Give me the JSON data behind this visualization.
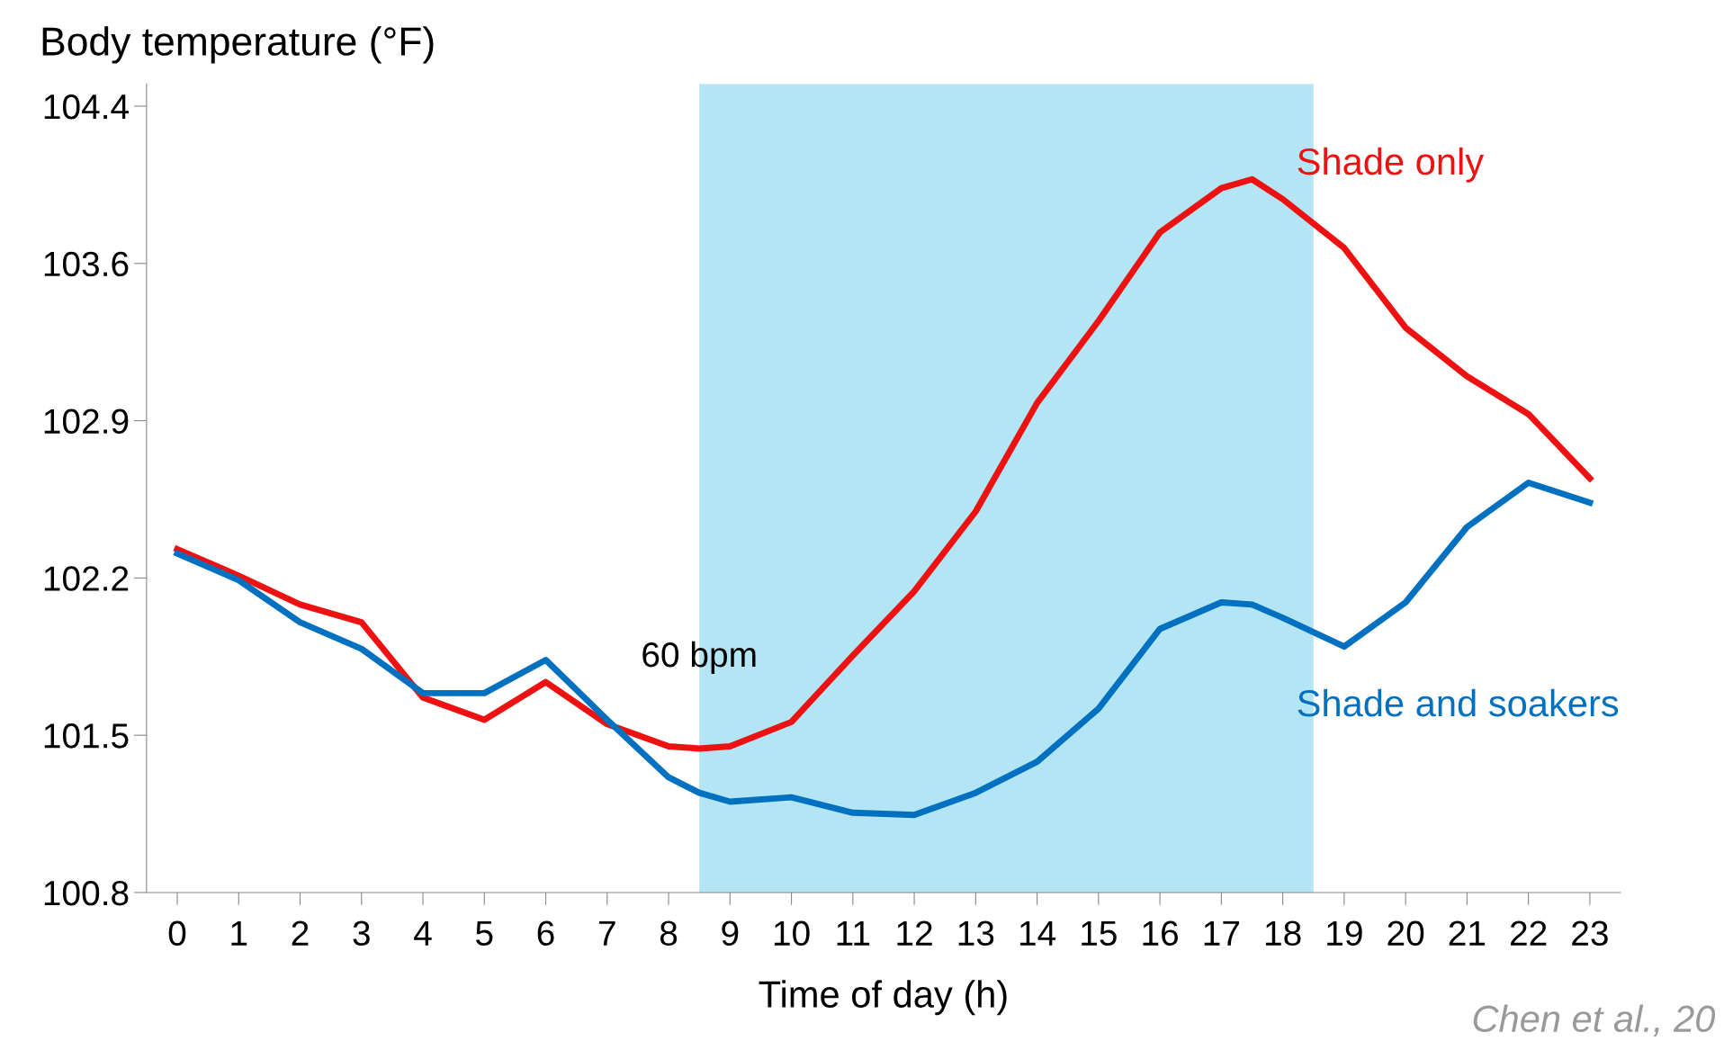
{
  "chart_data": {
    "type": "line",
    "ylabel": "Body temperature (°F)",
    "xlabel": "Time of day (h)",
    "x": [
      0,
      1,
      2,
      3,
      4,
      5,
      6,
      7,
      8,
      8.5,
      9,
      10,
      11,
      12,
      13,
      14,
      15,
      16,
      17,
      17.5,
      18,
      19,
      20,
      21,
      22,
      23
    ],
    "series": [
      {
        "name": "Shade only",
        "color": "#ee1111",
        "values": [
          102.35,
          102.23,
          102.1,
          102.02,
          101.68,
          101.58,
          101.75,
          101.56,
          101.46,
          101.45,
          101.46,
          101.57,
          101.87,
          102.16,
          102.52,
          103.01,
          103.38,
          103.78,
          103.98,
          104.02,
          103.93,
          103.71,
          103.35,
          103.13,
          102.96,
          102.67
        ]
      },
      {
        "name": "Shade and soakers",
        "color": "#0070c0",
        "values": [
          102.33,
          102.21,
          102.02,
          101.9,
          101.7,
          101.7,
          101.85,
          101.58,
          101.32,
          101.25,
          101.21,
          101.23,
          101.16,
          101.15,
          101.25,
          101.39,
          101.63,
          101.99,
          102.11,
          102.1,
          102.04,
          101.91,
          102.11,
          102.45,
          102.65,
          102.56
        ]
      }
    ],
    "xlim": [
      -0.5,
      23.5
    ],
    "xticks": [
      0,
      1,
      2,
      3,
      4,
      5,
      6,
      7,
      8,
      9,
      10,
      11,
      12,
      13,
      14,
      15,
      16,
      17,
      18,
      19,
      20,
      21,
      22,
      23
    ],
    "ylim": [
      100.8,
      104.45
    ],
    "yticks": [
      {
        "value": 100.8,
        "label": "100.8"
      },
      {
        "value": 101.51,
        "label": "101.5"
      },
      {
        "value": 102.22,
        "label": "102.2"
      },
      {
        "value": 102.93,
        "label": "102.9"
      },
      {
        "value": 103.64,
        "label": "103.6"
      },
      {
        "value": 104.35,
        "label": "104.4"
      }
    ],
    "bands": [
      {
        "axis": "x",
        "from": 8.5,
        "to": 18.5,
        "color": "#b3e5f5"
      }
    ],
    "annotations": [
      {
        "text": "60 bpm",
        "x": 8.5,
        "y": 101.86
      },
      "Chen et al., 20"
    ],
    "grid": false,
    "legend": false,
    "line_style": "solid",
    "marker": "none"
  }
}
